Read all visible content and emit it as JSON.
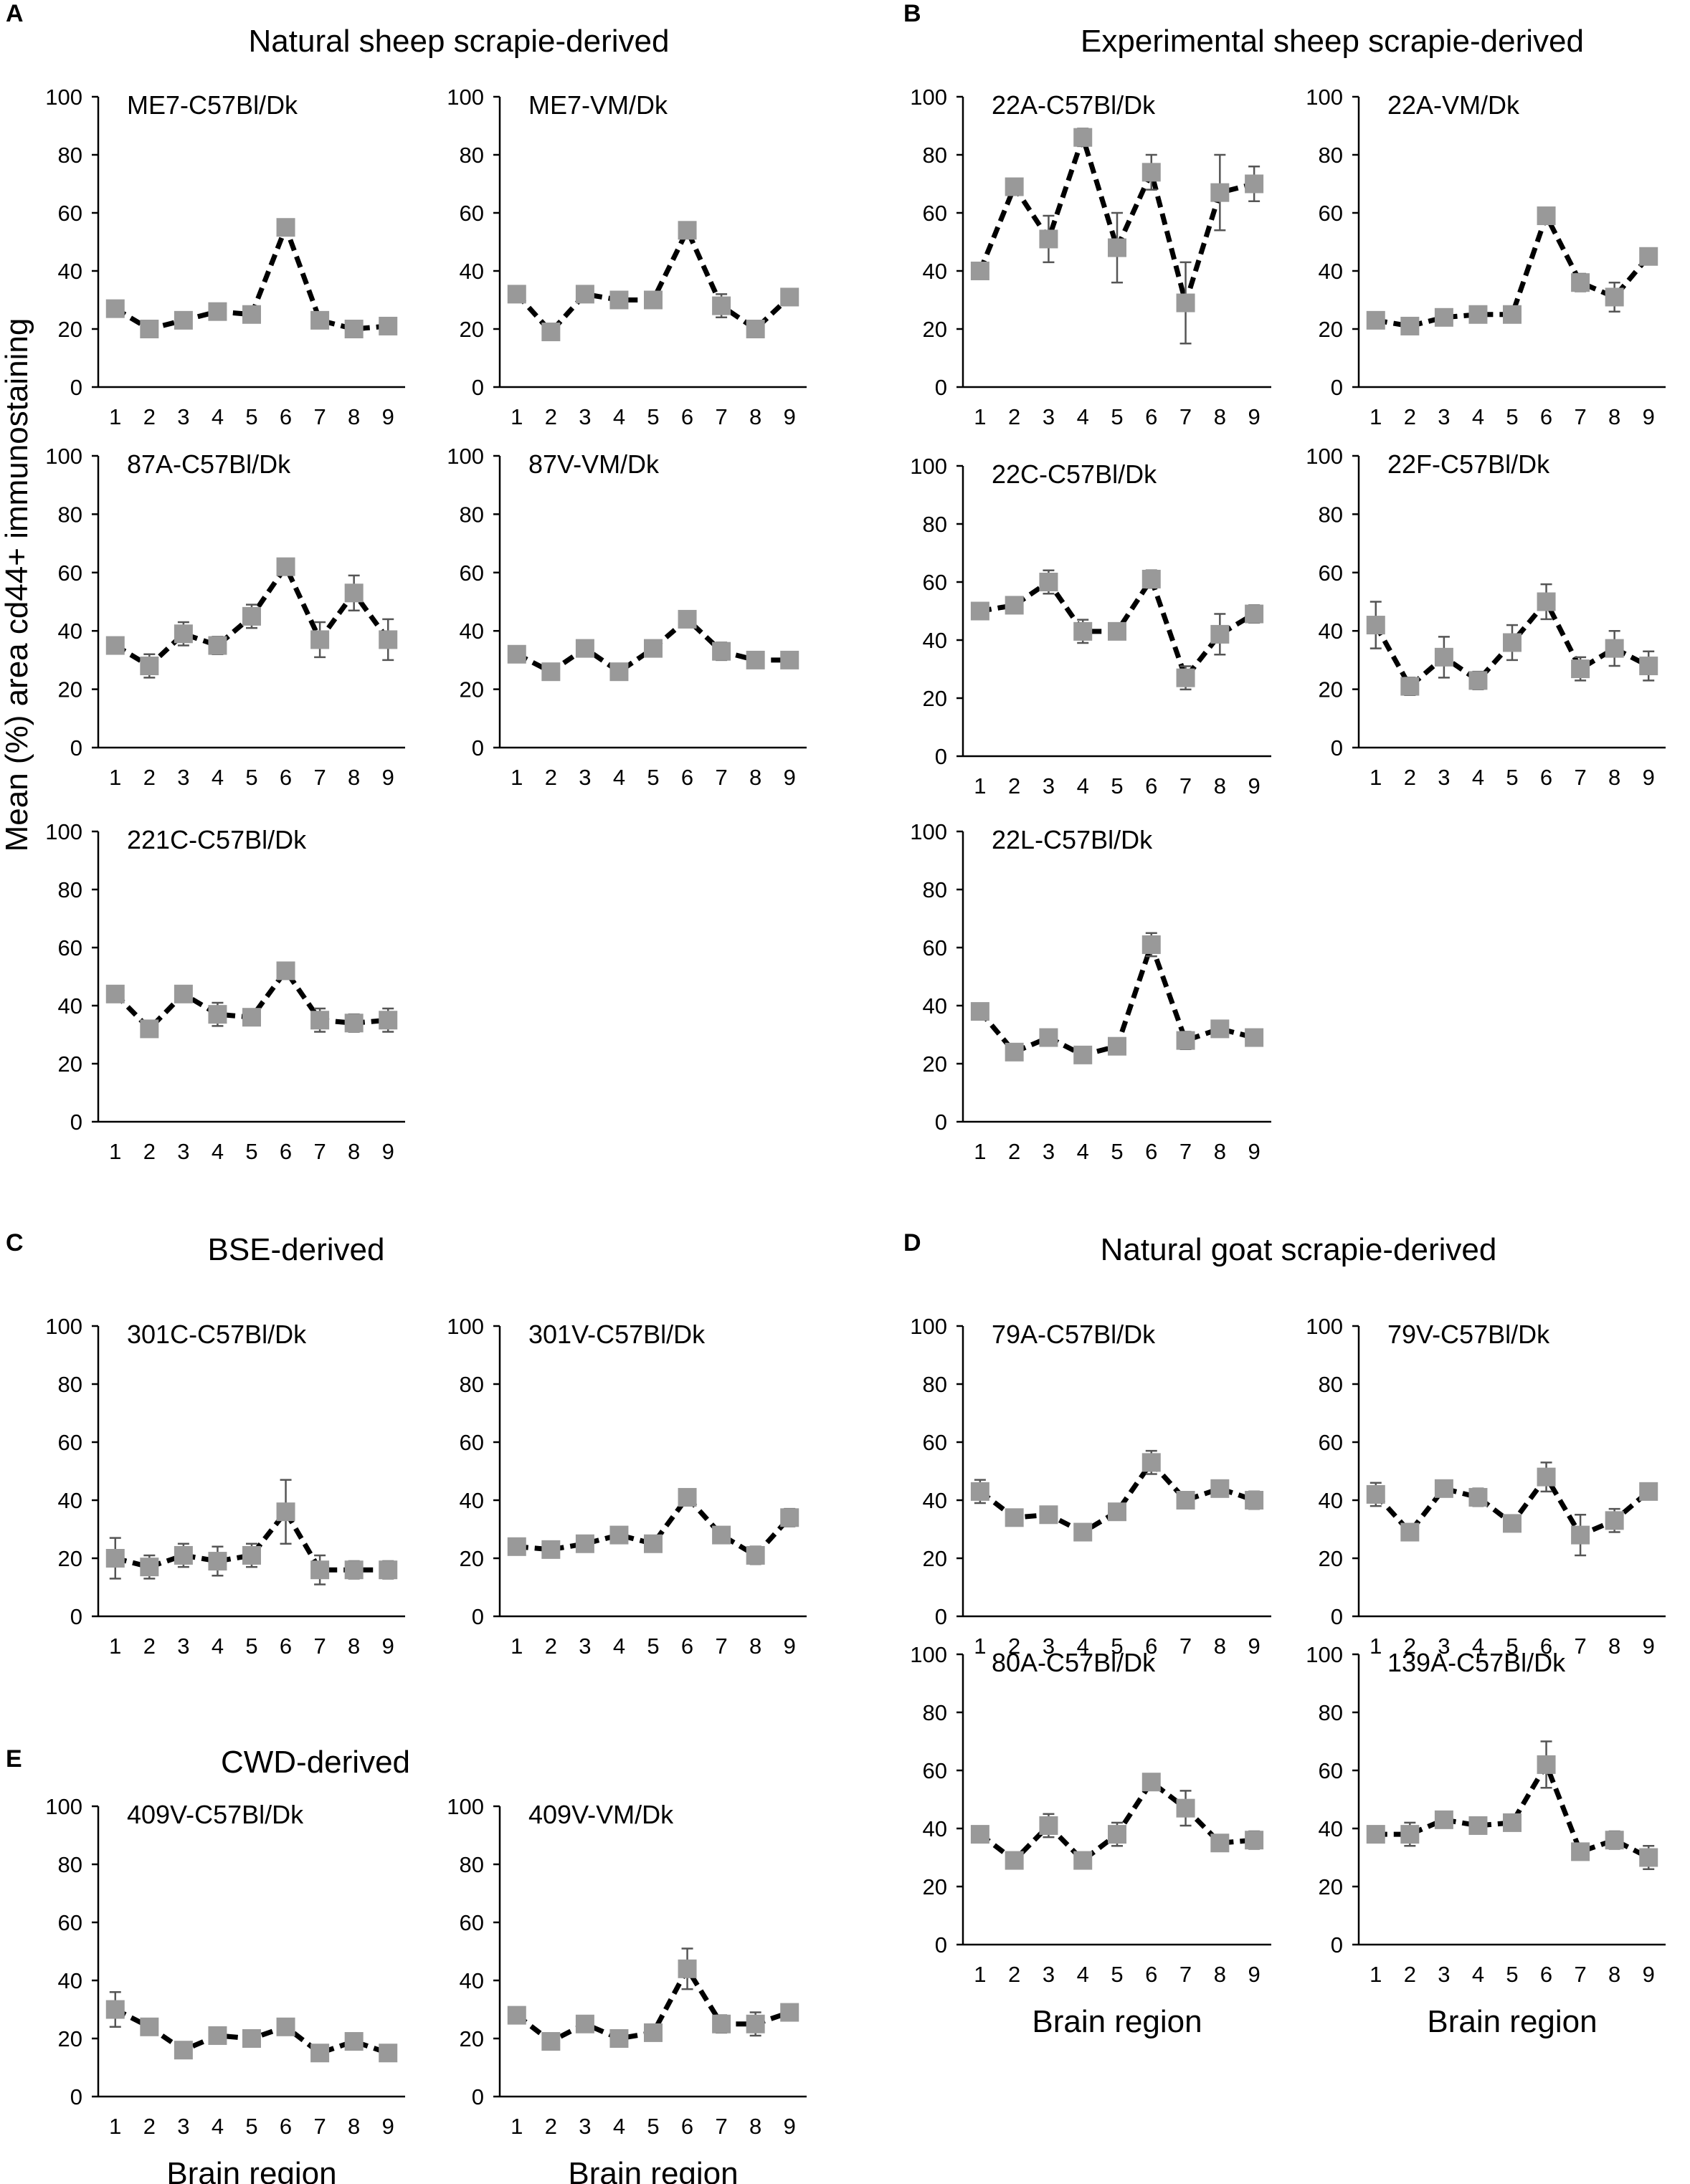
{
  "figure": {
    "y_axis_label": "Mean (%) area cd44+ immunostaining",
    "panels": [
      {
        "letter": "A",
        "title": "Natural sheep scrapie-derived"
      },
      {
        "letter": "B",
        "title": "Experimental sheep scrapie-derived"
      },
      {
        "letter": "C",
        "title": "BSE-derived"
      },
      {
        "letter": "D",
        "title": "Natural goat scrapie-derived"
      },
      {
        "letter": "E",
        "title": "CWD-derived"
      }
    ]
  },
  "chart_data": [
    {
      "type": "line",
      "panel": "A",
      "title": "ME7-C57Bl/Dk",
      "x": [
        1,
        2,
        3,
        4,
        5,
        6,
        7,
        8,
        9
      ],
      "values": [
        27,
        20,
        23,
        26,
        25,
        55,
        23,
        20,
        21
      ],
      "errors": [
        1,
        1,
        1,
        1,
        1,
        2,
        1,
        1,
        1
      ],
      "ylim": [
        0,
        100
      ],
      "yticks": [
        0,
        20,
        40,
        60,
        80,
        100
      ],
      "xlabel": ""
    },
    {
      "type": "line",
      "panel": "A",
      "title": "ME7-VM/Dk",
      "x": [
        1,
        2,
        3,
        4,
        5,
        6,
        7,
        8,
        9
      ],
      "values": [
        32,
        19,
        32,
        30,
        30,
        54,
        28,
        20,
        31
      ],
      "errors": [
        2,
        1,
        2,
        1,
        1,
        2,
        4,
        1,
        2
      ],
      "ylim": [
        0,
        100
      ],
      "yticks": [
        0,
        20,
        40,
        60,
        80,
        100
      ],
      "xlabel": ""
    },
    {
      "type": "line",
      "panel": "A",
      "title": "87A-C57Bl/Dk",
      "x": [
        1,
        2,
        3,
        4,
        5,
        6,
        7,
        8,
        9
      ],
      "values": [
        35,
        28,
        39,
        35,
        45,
        62,
        37,
        53,
        37
      ],
      "errors": [
        2,
        4,
        4,
        3,
        4,
        2,
        6,
        6,
        7
      ],
      "ylim": [
        0,
        100
      ],
      "yticks": [
        0,
        20,
        40,
        60,
        80,
        100
      ],
      "xlabel": ""
    },
    {
      "type": "line",
      "panel": "A",
      "title": "87V-VM/Dk",
      "x": [
        1,
        2,
        3,
        4,
        5,
        6,
        7,
        8,
        9
      ],
      "values": [
        32,
        26,
        34,
        26,
        34,
        44,
        33,
        30,
        30
      ],
      "errors": [
        1,
        1,
        1,
        2,
        1,
        2,
        3,
        1,
        2
      ],
      "ylim": [
        0,
        100
      ],
      "yticks": [
        0,
        20,
        40,
        60,
        80,
        100
      ],
      "xlabel": ""
    },
    {
      "type": "line",
      "panel": "A",
      "title": "221C-C57Bl/Dk",
      "x": [
        1,
        2,
        3,
        4,
        5,
        6,
        7,
        8,
        9
      ],
      "values": [
        44,
        32,
        44,
        37,
        36,
        52,
        35,
        34,
        35
      ],
      "errors": [
        1,
        2,
        2,
        4,
        2,
        2,
        4,
        3,
        4
      ],
      "ylim": [
        0,
        100
      ],
      "yticks": [
        0,
        20,
        40,
        60,
        80,
        100
      ],
      "xlabel": ""
    },
    {
      "type": "line",
      "panel": "B",
      "title": "22A-C57Bl/Dk",
      "x": [
        1,
        2,
        3,
        4,
        5,
        6,
        7,
        8,
        9
      ],
      "values": [
        40,
        69,
        51,
        86,
        48,
        74,
        29,
        67,
        70
      ],
      "errors": [
        1,
        2,
        8,
        3,
        12,
        6,
        14,
        13,
        6
      ],
      "ylim": [
        0,
        100
      ],
      "yticks": [
        0,
        20,
        40,
        60,
        80,
        100
      ],
      "xlabel": ""
    },
    {
      "type": "line",
      "panel": "B",
      "title": "22A-VM/Dk",
      "x": [
        1,
        2,
        3,
        4,
        5,
        6,
        7,
        8,
        9
      ],
      "values": [
        23,
        21,
        24,
        25,
        25,
        59,
        36,
        31,
        45
      ],
      "errors": [
        1,
        1,
        1,
        1,
        1,
        2,
        3,
        5,
        2
      ],
      "ylim": [
        0,
        100
      ],
      "yticks": [
        0,
        20,
        40,
        60,
        80,
        100
      ],
      "xlabel": ""
    },
    {
      "type": "line",
      "panel": "B",
      "title": "22C-C57Bl/Dk",
      "x": [
        1,
        2,
        3,
        4,
        5,
        6,
        7,
        8,
        9
      ],
      "values": [
        50,
        52,
        60,
        43,
        43,
        61,
        27,
        42,
        49
      ],
      "errors": [
        1,
        2,
        4,
        4,
        2,
        3,
        4,
        7,
        3
      ],
      "ylim": [
        0,
        100
      ],
      "yticks": [
        0,
        20,
        40,
        60,
        80,
        100
      ],
      "xlabel": ""
    },
    {
      "type": "line",
      "panel": "B",
      "title": "22F-C57Bl/Dk",
      "x": [
        1,
        2,
        3,
        4,
        5,
        6,
        7,
        8,
        9
      ],
      "values": [
        42,
        21,
        31,
        23,
        36,
        50,
        27,
        34,
        28
      ],
      "errors": [
        8,
        3,
        7,
        3,
        6,
        6,
        4,
        6,
        5
      ],
      "ylim": [
        0,
        100
      ],
      "yticks": [
        0,
        20,
        40,
        60,
        80,
        100
      ],
      "xlabel": ""
    },
    {
      "type": "line",
      "panel": "B",
      "title": "22L-C57Bl/Dk",
      "x": [
        1,
        2,
        3,
        4,
        5,
        6,
        7,
        8,
        9
      ],
      "values": [
        38,
        24,
        29,
        23,
        26,
        61,
        28,
        32,
        29
      ],
      "errors": [
        2,
        1,
        1,
        2,
        1,
        4,
        3,
        1,
        1
      ],
      "ylim": [
        0,
        100
      ],
      "yticks": [
        0,
        20,
        40,
        60,
        80,
        100
      ],
      "xlabel": ""
    },
    {
      "type": "line",
      "panel": "C",
      "title": "301C-C57Bl/Dk",
      "x": [
        1,
        2,
        3,
        4,
        5,
        6,
        7,
        8,
        9
      ],
      "values": [
        20,
        17,
        21,
        19,
        21,
        36,
        16,
        16,
        16
      ],
      "errors": [
        7,
        4,
        4,
        5,
        4,
        11,
        5,
        3,
        3
      ],
      "ylim": [
        0,
        100
      ],
      "yticks": [
        0,
        20,
        40,
        60,
        80,
        100
      ],
      "xlabel": ""
    },
    {
      "type": "line",
      "panel": "C",
      "title": "301V-C57Bl/Dk",
      "x": [
        1,
        2,
        3,
        4,
        5,
        6,
        7,
        8,
        9
      ],
      "values": [
        24,
        23,
        25,
        28,
        25,
        41,
        28,
        21,
        34
      ],
      "errors": [
        1,
        1,
        1,
        1,
        1,
        2,
        1,
        3,
        3
      ],
      "ylim": [
        0,
        100
      ],
      "yticks": [
        0,
        20,
        40,
        60,
        80,
        100
      ],
      "xlabel": ""
    },
    {
      "type": "line",
      "panel": "D",
      "title": "79A-C57Bl/Dk",
      "x": [
        1,
        2,
        3,
        4,
        5,
        6,
        7,
        8,
        9
      ],
      "values": [
        43,
        34,
        35,
        29,
        36,
        53,
        40,
        44,
        40
      ],
      "errors": [
        4,
        1,
        1,
        1,
        1,
        4,
        2,
        1,
        3
      ],
      "ylim": [
        0,
        100
      ],
      "yticks": [
        0,
        20,
        40,
        60,
        80,
        100
      ],
      "xlabel": ""
    },
    {
      "type": "line",
      "panel": "D",
      "title": "79V-C57Bl/Dk",
      "x": [
        1,
        2,
        3,
        4,
        5,
        6,
        7,
        8,
        9
      ],
      "values": [
        42,
        29,
        44,
        41,
        32,
        48,
        28,
        33,
        43
      ],
      "errors": [
        4,
        1,
        1,
        3,
        2,
        5,
        7,
        4,
        2
      ],
      "ylim": [
        0,
        100
      ],
      "yticks": [
        0,
        20,
        40,
        60,
        80,
        100
      ],
      "xlabel": ""
    },
    {
      "type": "line",
      "panel": "D",
      "title": "80A-C57Bl/Dk",
      "x": [
        1,
        2,
        3,
        4,
        5,
        6,
        7,
        8,
        9
      ],
      "values": [
        38,
        29,
        41,
        29,
        38,
        56,
        47,
        35,
        36
      ],
      "errors": [
        1,
        1,
        4,
        1,
        4,
        2,
        6,
        1,
        3
      ],
      "ylim": [
        0,
        100
      ],
      "yticks": [
        0,
        20,
        40,
        60,
        80,
        100
      ],
      "xlabel": "Brain region"
    },
    {
      "type": "line",
      "panel": "D",
      "title": "139A-C57Bl/Dk",
      "x": [
        1,
        2,
        3,
        4,
        5,
        6,
        7,
        8,
        9
      ],
      "values": [
        38,
        38,
        43,
        41,
        42,
        62,
        32,
        36,
        30
      ],
      "errors": [
        1,
        4,
        1,
        2,
        1,
        8,
        2,
        3,
        4
      ],
      "ylim": [
        0,
        100
      ],
      "yticks": [
        0,
        20,
        40,
        60,
        80,
        100
      ],
      "xlabel": "Brain region"
    },
    {
      "type": "line",
      "panel": "E",
      "title": "409V-C57Bl/Dk",
      "x": [
        1,
        2,
        3,
        4,
        5,
        6,
        7,
        8,
        9
      ],
      "values": [
        30,
        24,
        16,
        21,
        20,
        24,
        15,
        19,
        15
      ],
      "errors": [
        6,
        2,
        2,
        1,
        1,
        1,
        1,
        1,
        1
      ],
      "ylim": [
        0,
        100
      ],
      "yticks": [
        0,
        20,
        40,
        60,
        80,
        100
      ],
      "xlabel": "Brain region"
    },
    {
      "type": "line",
      "panel": "E",
      "title": "409V-VM/Dk",
      "x": [
        1,
        2,
        3,
        4,
        5,
        6,
        7,
        8,
        9
      ],
      "values": [
        28,
        19,
        25,
        20,
        22,
        44,
        25,
        25,
        29
      ],
      "errors": [
        1,
        1,
        1,
        1,
        1,
        7,
        3,
        4,
        1
      ],
      "ylim": [
        0,
        100
      ],
      "yticks": [
        0,
        20,
        40,
        60,
        80,
        100
      ],
      "xlabel": "Brain region"
    }
  ]
}
